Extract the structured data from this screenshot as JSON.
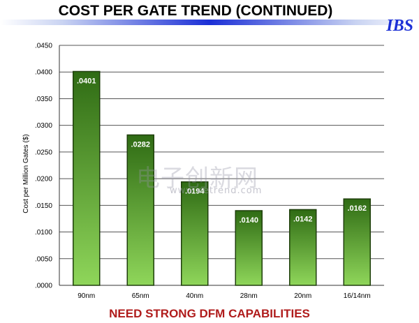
{
  "header": {
    "title": "COST PER GATE TREND (CONTINUED)",
    "logo_text": "IBS"
  },
  "footer": {
    "text": "NEED STRONG DFM CAPABILITIES"
  },
  "watermark": {
    "text": "电子创新网",
    "subtext": "www.eetrend.com"
  },
  "colors": {
    "bar_top": "#2f6b14",
    "bar_bottom": "#8fd65a",
    "bar_stroke": "#1f3f0c",
    "grid": "#555555",
    "title_rule": "#1b2fd6",
    "footer": "#b01c1c"
  },
  "chart_data": {
    "type": "bar",
    "title": "",
    "xlabel": "",
    "ylabel": "Cost per Million Gates ($)",
    "categories": [
      "90nm",
      "65nm",
      "40nm",
      "28nm",
      "20nm",
      "16/14nm"
    ],
    "values": [
      0.0401,
      0.0282,
      0.0194,
      0.014,
      0.0142,
      0.0162
    ],
    "value_labels": [
      ".0401",
      ".0282",
      ".0194",
      ".0140",
      ".0142",
      ".0162"
    ],
    "ylim": [
      0,
      0.045
    ],
    "yticks": [
      0,
      0.005,
      0.01,
      0.015,
      0.02,
      0.025,
      0.03,
      0.035,
      0.04,
      0.045
    ],
    "ytick_labels": [
      ".0000",
      ".0050",
      ".0100",
      ".0150",
      ".0200",
      ".0250",
      ".0300",
      ".0350",
      ".0400",
      ".0450"
    ],
    "grid": true,
    "legend": "none"
  }
}
